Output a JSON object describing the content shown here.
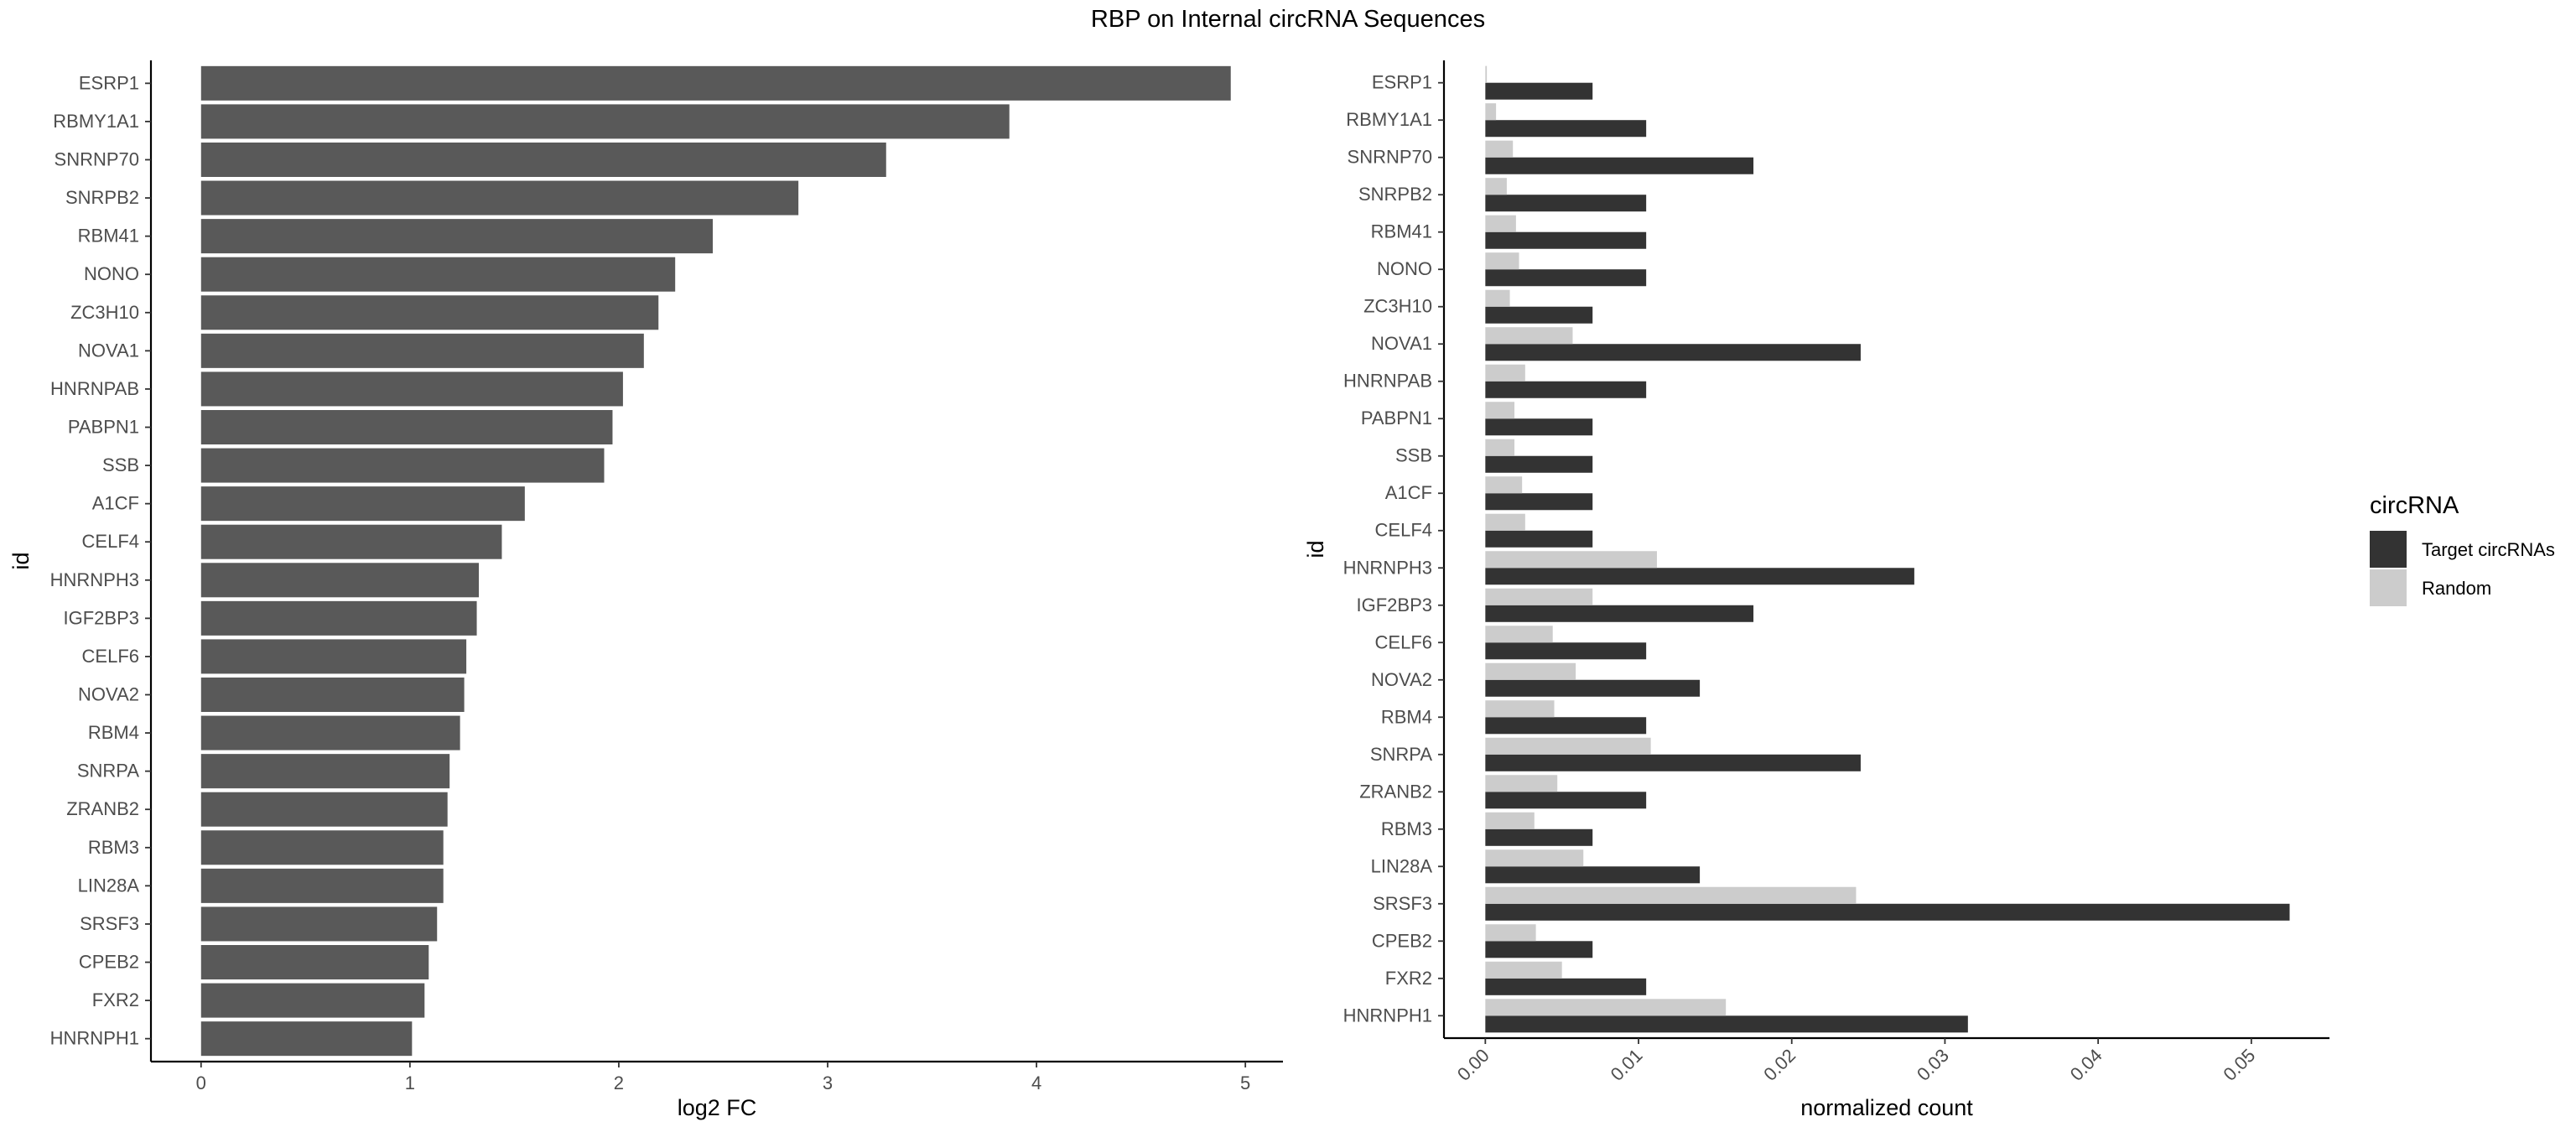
{
  "figure": {
    "title": "RBP on Internal circRNA Sequences"
  },
  "chart_data": [
    {
      "type": "bar",
      "orientation": "horizontal",
      "categories": [
        "ESRP1",
        "RBMY1A1",
        "SNRNP70",
        "SNRPB2",
        "RBM41",
        "NONO",
        "ZC3H10",
        "NOVA1",
        "HNRNPAB",
        "PABPN1",
        "SSB",
        "A1CF",
        "CELF4",
        "HNRNPH3",
        "IGF2BP3",
        "CELF6",
        "NOVA2",
        "RBM4",
        "SNRPA",
        "ZRANB2",
        "RBM3",
        "LIN28A",
        "SRSF3",
        "CPEB2",
        "FXR2",
        "HNRNPH1"
      ],
      "values": [
        4.93,
        3.87,
        3.28,
        2.86,
        2.45,
        2.27,
        2.19,
        2.12,
        2.02,
        1.97,
        1.93,
        1.55,
        1.44,
        1.33,
        1.32,
        1.27,
        1.26,
        1.24,
        1.19,
        1.18,
        1.16,
        1.16,
        1.13,
        1.09,
        1.07,
        1.01
      ],
      "title": "",
      "xlabel": "log2 FC",
      "ylabel": "id",
      "xlim": [
        -0.24,
        5.18
      ],
      "xticks": [
        0,
        1,
        2,
        3,
        4,
        5
      ],
      "grid": false,
      "bar_color": "#595959"
    },
    {
      "type": "bar",
      "orientation": "horizontal",
      "grouped": true,
      "categories": [
        "ESRP1",
        "RBMY1A1",
        "SNRNP70",
        "SNRPB2",
        "RBM41",
        "NONO",
        "ZC3H10",
        "NOVA1",
        "HNRNPAB",
        "PABPN1",
        "SSB",
        "A1CF",
        "CELF4",
        "HNRNPH3",
        "IGF2BP3",
        "CELF6",
        "NOVA2",
        "RBM4",
        "SNRPA",
        "ZRANB2",
        "RBM3",
        "LIN28A",
        "SRSF3",
        "CPEB2",
        "FXR2",
        "HNRNPH1"
      ],
      "series": [
        {
          "name": "Target circRNAs",
          "color": "#333333",
          "values": [
            0.007,
            0.0105,
            0.0175,
            0.0105,
            0.0105,
            0.0105,
            0.007,
            0.0245,
            0.0105,
            0.007,
            0.007,
            0.007,
            0.007,
            0.028,
            0.0175,
            0.0105,
            0.014,
            0.0105,
            0.0245,
            0.0105,
            0.007,
            0.014,
            0.0525,
            0.007,
            0.0105,
            0.0315
          ]
        },
        {
          "name": "Random",
          "color": "#cccccc",
          "values": [
            0.0001,
            0.0007,
            0.0018,
            0.0014,
            0.002,
            0.0022,
            0.0016,
            0.0057,
            0.0026,
            0.0019,
            0.0019,
            0.0024,
            0.0026,
            0.0112,
            0.007,
            0.0044,
            0.0059,
            0.0045,
            0.0108,
            0.0047,
            0.0032,
            0.0064,
            0.0242,
            0.0033,
            0.005,
            0.0157
          ]
        }
      ],
      "title": "",
      "xlabel": "normalized count",
      "ylabel": "id",
      "xlim": [
        -0.0027,
        0.0551
      ],
      "xticks": [
        0.0,
        0.01,
        0.02,
        0.03,
        0.04,
        0.05
      ],
      "xtick_labels": [
        "0.00",
        "0.01",
        "0.02",
        "0.03",
        "0.04",
        "0.05"
      ],
      "grid": false,
      "legend": {
        "title": "circRNA",
        "position": "right"
      }
    }
  ]
}
